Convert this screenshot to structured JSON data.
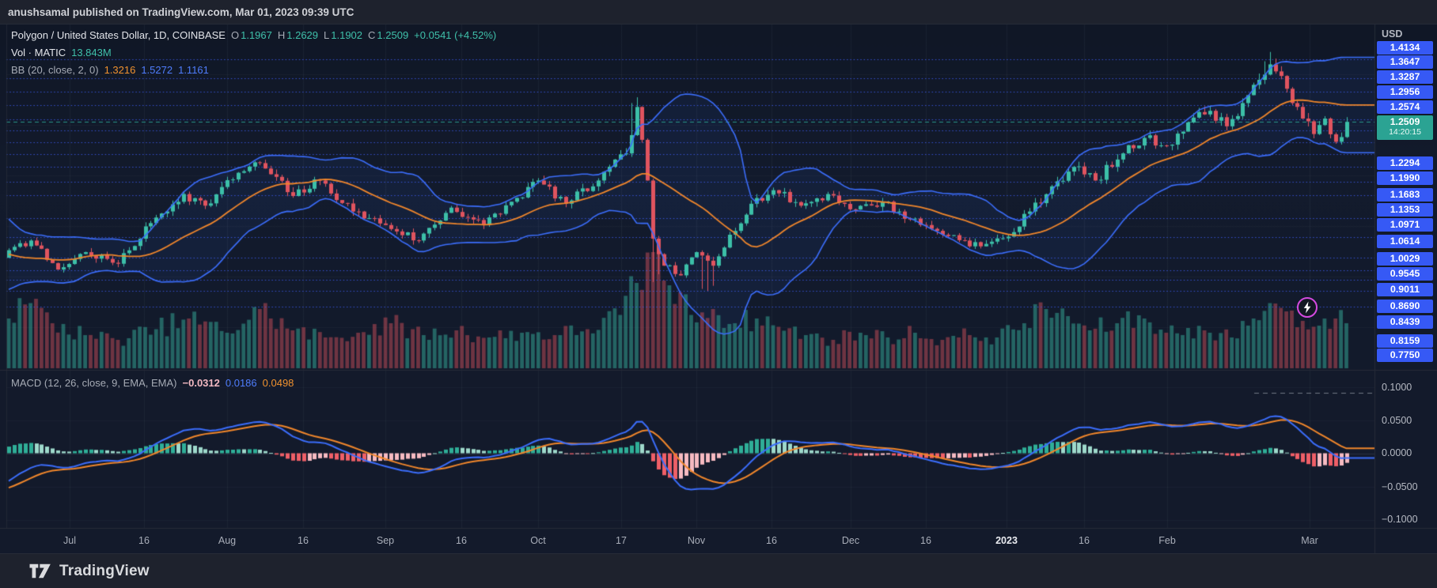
{
  "topbar": {
    "attribution": "anushsamal published on TradingView.com, Mar 01, 2023 09:39 UTC"
  },
  "main_legend": {
    "symbol": "Polygon / United States Dollar, 1D, COINBASE",
    "ohlc": {
      "o_label": "O",
      "o": "1.1967",
      "h_label": "H",
      "h": "1.2629",
      "l_label": "L",
      "l": "1.1902",
      "c_label": "C",
      "c": "1.2509",
      "change": "+0.0541 (+4.52%)"
    },
    "volume_row": {
      "label": "Vol · MATIC",
      "value": "13.843M"
    },
    "bb_row": {
      "label": "BB (20, close, 2, 0)",
      "basis": "1.3216",
      "upper": "1.5272",
      "lower": "1.1161"
    }
  },
  "macd_legend": {
    "label": "MACD (12, 26, close, 9, EMA, EMA)",
    "histogram": "−0.0312",
    "macd": "0.0186",
    "signal": "0.0498"
  },
  "price_axis": {
    "currency": "USD",
    "levels_above_last": [
      "1.4134",
      "1.3647",
      "1.3287",
      "1.2956",
      "1.2574"
    ],
    "last_price": "1.2509",
    "countdown": "14:20:15",
    "levels_below_last": [
      "1.2294",
      "1.1990",
      "1.1683",
      "1.1353",
      "1.0971",
      "1.0614",
      "1.0029",
      "0.9545",
      "0.9011",
      "0.8690",
      "0.8439",
      "0.8159",
      "0.7750"
    ]
  },
  "macd_axis": {
    "labels": [
      "0.1000",
      "0.0500",
      "0.0000",
      "−0.0500",
      "−0.1000"
    ]
  },
  "time_axis": {
    "labels": [
      "Jul",
      "16",
      "Aug",
      "16",
      "Sep",
      "16",
      "Oct",
      "17",
      "Nov",
      "16",
      "Dec",
      "16",
      "2023",
      "16",
      "Feb",
      "Mar"
    ],
    "emphasized": "2023"
  },
  "footer": {
    "brand": "TradingView"
  },
  "colors": {
    "chart_bg": "#131a2b",
    "panel_bg": "#1e222d",
    "grid": "rgba(160,170,190,0.07)",
    "level_blue": "rgba(63,94,251,0.8)",
    "axis_label_blue": "#3659f5",
    "axis_label_teal": "#2ba393",
    "up": "#3cbfa8",
    "down": "#e0545f",
    "bb_band": "#3b6dfb",
    "bb_basis": "#f0862b",
    "macd_line": "#3b6dfb",
    "signal_line": "#f0862b",
    "hist_pos_strong": "#2fae97",
    "hist_pos_pale": "#9ed9cb",
    "hist_neg_strong": "#ef5f67",
    "hist_neg_pale": "#f6bac1",
    "border": "#262b37"
  },
  "chart_data": {
    "type": "candlestick",
    "symbol": "Polygon / United States Dollar",
    "exchange": "COINBASE",
    "interval": "1D",
    "last_bar": {
      "open": 1.1967,
      "high": 1.2629,
      "low": 1.1902,
      "close": 1.2509,
      "change": 0.0541,
      "change_pct": 4.52
    },
    "volume_display": "13.843M",
    "price_ylim": [
      0.615,
      1.505
    ],
    "drawn_levels": [
      1.4134,
      1.3647,
      1.3287,
      1.2956,
      1.2574,
      1.2294,
      1.199,
      1.1683,
      1.1353,
      1.0971,
      1.0614,
      1.0029,
      0.9545,
      0.9011,
      0.869,
      0.8439,
      0.8159,
      0.775
    ],
    "bollinger": {
      "length": 20,
      "source": "close",
      "stdev": 2,
      "offset": 0,
      "basis": 1.3216,
      "upper": 1.5272,
      "lower": 1.1161
    },
    "macd": {
      "fast": 12,
      "slow": 26,
      "source": "close",
      "signal": 9,
      "ma_type": "EMA",
      "histogram": -0.0312,
      "macd_line": 0.0186,
      "signal_line": 0.0498,
      "axis_ticks": [
        0.1,
        0.05,
        0.0,
        -0.05,
        -0.1
      ]
    },
    "time_ticks": [
      "Jul",
      "16",
      "Aug",
      "16",
      "Sep",
      "16",
      "Oct",
      "17",
      "Nov",
      "16",
      "Dec",
      "16",
      "2023",
      "16",
      "Feb",
      "Mar"
    ],
    "close_anchors": [
      [
        -40,
        1.16
      ],
      [
        -30,
        1.1
      ],
      [
        -22,
        1.04
      ],
      [
        -15,
        0.95
      ],
      [
        -10,
        0.88
      ],
      [
        -6,
        0.85
      ],
      [
        -3,
        0.885
      ],
      [
        0,
        0.92
      ],
      [
        4,
        0.945
      ],
      [
        9,
        0.87
      ],
      [
        14,
        0.915
      ],
      [
        20,
        0.885
      ],
      [
        26,
        0.99
      ],
      [
        32,
        1.065
      ],
      [
        36,
        1.035
      ],
      [
        42,
        1.12
      ],
      [
        46,
        1.145
      ],
      [
        52,
        1.06
      ],
      [
        57,
        1.1
      ],
      [
        63,
        1.02
      ],
      [
        69,
        0.985
      ],
      [
        75,
        0.945
      ],
      [
        81,
        1.03
      ],
      [
        87,
        0.985
      ],
      [
        93,
        1.055
      ],
      [
        97,
        1.1
      ],
      [
        102,
        1.04
      ],
      [
        108,
        1.1
      ],
      [
        113,
        1.17
      ],
      [
        115,
        1.29
      ],
      [
        117,
        1.1
      ],
      [
        118,
        0.95
      ],
      [
        120,
        0.88
      ],
      [
        123,
        0.855
      ],
      [
        126,
        0.915
      ],
      [
        129,
        0.88
      ],
      [
        132,
        0.96
      ],
      [
        136,
        1.04
      ],
      [
        140,
        1.075
      ],
      [
        145,
        1.035
      ],
      [
        150,
        1.065
      ],
      [
        155,
        1.025
      ],
      [
        160,
        1.045
      ],
      [
        165,
        1.0
      ],
      [
        170,
        0.97
      ],
      [
        175,
        0.945
      ],
      [
        178,
        0.93
      ],
      [
        183,
        0.955
      ],
      [
        187,
        1.02
      ],
      [
        191,
        1.085
      ],
      [
        195,
        1.135
      ],
      [
        199,
        1.1
      ],
      [
        204,
        1.17
      ],
      [
        208,
        1.21
      ],
      [
        212,
        1.19
      ],
      [
        216,
        1.25
      ],
      [
        220,
        1.28
      ],
      [
        223,
        1.24
      ],
      [
        226,
        1.3
      ],
      [
        229,
        1.36
      ],
      [
        231,
        1.4
      ],
      [
        233,
        1.37
      ],
      [
        235,
        1.3
      ],
      [
        237,
        1.26
      ],
      [
        239,
        1.22
      ],
      [
        241,
        1.26
      ],
      [
        243,
        1.2
      ],
      [
        245,
        1.2509
      ]
    ],
    "volume_anchors": [
      [
        0,
        0.42
      ],
      [
        4,
        0.55
      ],
      [
        8,
        0.38
      ],
      [
        14,
        0.28
      ],
      [
        20,
        0.24
      ],
      [
        27,
        0.33
      ],
      [
        33,
        0.42
      ],
      [
        40,
        0.3
      ],
      [
        46,
        0.5
      ],
      [
        52,
        0.32
      ],
      [
        58,
        0.26
      ],
      [
        64,
        0.3
      ],
      [
        70,
        0.38
      ],
      [
        76,
        0.28
      ],
      [
        82,
        0.32
      ],
      [
        88,
        0.26
      ],
      [
        94,
        0.3
      ],
      [
        100,
        0.28
      ],
      [
        106,
        0.33
      ],
      [
        112,
        0.45
      ],
      [
        115,
        0.72
      ],
      [
        118,
        0.98
      ],
      [
        121,
        0.7
      ],
      [
        125,
        0.45
      ],
      [
        129,
        0.5
      ],
      [
        133,
        0.38
      ],
      [
        137,
        0.42
      ],
      [
        141,
        0.35
      ],
      [
        146,
        0.28
      ],
      [
        151,
        0.24
      ],
      [
        156,
        0.3
      ],
      [
        161,
        0.26
      ],
      [
        166,
        0.3
      ],
      [
        171,
        0.24
      ],
      [
        176,
        0.28
      ],
      [
        181,
        0.26
      ],
      [
        186,
        0.38
      ],
      [
        190,
        0.5
      ],
      [
        194,
        0.44
      ],
      [
        198,
        0.32
      ],
      [
        203,
        0.38
      ],
      [
        208,
        0.42
      ],
      [
        212,
        0.3
      ],
      [
        216,
        0.34
      ],
      [
        220,
        0.3
      ],
      [
        224,
        0.26
      ],
      [
        228,
        0.42
      ],
      [
        231,
        0.55
      ],
      [
        234,
        0.48
      ],
      [
        237,
        0.4
      ],
      [
        240,
        0.36
      ],
      [
        243,
        0.42
      ],
      [
        245,
        0.38
      ]
    ],
    "wick_events": [
      {
        "i": 114,
        "h": 1.3
      },
      {
        "i": 115,
        "h": 1.315
      },
      {
        "i": 118,
        "l": 0.838
      },
      {
        "i": 119,
        "l": 0.858
      },
      {
        "i": 127,
        "l": 0.82
      },
      {
        "i": 128,
        "l": 0.815
      },
      {
        "i": 129,
        "l": 0.828
      },
      {
        "i": 230,
        "h": 1.408
      },
      {
        "i": 231,
        "h": 1.432
      },
      {
        "i": 232,
        "h": 1.415
      }
    ]
  }
}
